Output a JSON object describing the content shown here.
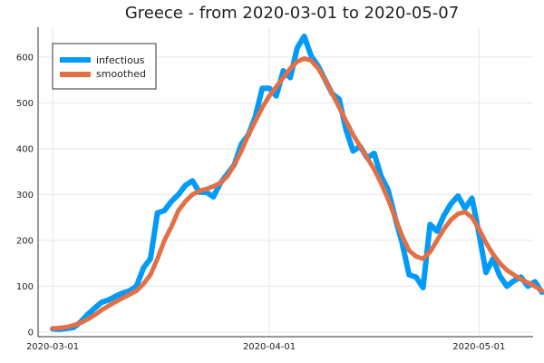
{
  "chart_data": {
    "type": "line",
    "title": "Greece - from 2020-03-01 to 2020-05-07",
    "xlabel": "",
    "ylabel": "",
    "x_start": "2020-03-01",
    "x_end": "2020-05-07",
    "x_ticks": [
      {
        "label": "2020-03-01",
        "day": 0
      },
      {
        "label": "2020-04-01",
        "day": 31
      },
      {
        "label": "2020-05-01",
        "day": 61
      }
    ],
    "y_ticks": [
      0,
      100,
      200,
      300,
      400,
      500,
      600
    ],
    "ylim": [
      -10,
      665
    ],
    "grid": true,
    "legend": {
      "placement": "top-left"
    },
    "series": [
      {
        "name": "infectious",
        "color": "#009af9",
        "values": [
          7,
          6,
          8,
          10,
          22,
          38,
          52,
          65,
          70,
          78,
          85,
          90,
          100,
          140,
          160,
          260,
          265,
          285,
          300,
          320,
          330,
          305,
          305,
          295,
          325,
          345,
          365,
          410,
          430,
          470,
          532,
          532,
          515,
          570,
          555,
          620,
          645,
          602,
          580,
          550,
          520,
          508,
          440,
          395,
          405,
          380,
          390,
          340,
          310,
          250,
          195,
          125,
          120,
          97,
          235,
          220,
          255,
          280,
          297,
          270,
          292,
          215,
          130,
          160,
          122,
          100,
          112,
          120,
          100,
          110,
          87
        ]
      },
      {
        "name": "smoothed",
        "color": "#e26f46",
        "values": [
          8,
          9,
          11,
          15,
          20,
          28,
          37,
          48,
          57,
          66,
          74,
          82,
          90,
          105,
          125,
          160,
          200,
          230,
          265,
          285,
          300,
          308,
          312,
          318,
          325,
          340,
          365,
          395,
          430,
          460,
          490,
          515,
          535,
          555,
          575,
          590,
          597,
          592,
          575,
          550,
          520,
          490,
          460,
          430,
          405,
          380,
          355,
          325,
          290,
          250,
          210,
          178,
          165,
          160,
          175,
          200,
          225,
          245,
          258,
          262,
          250,
          225,
          195,
          170,
          150,
          135,
          125,
          115,
          108,
          100,
          90
        ]
      }
    ]
  }
}
